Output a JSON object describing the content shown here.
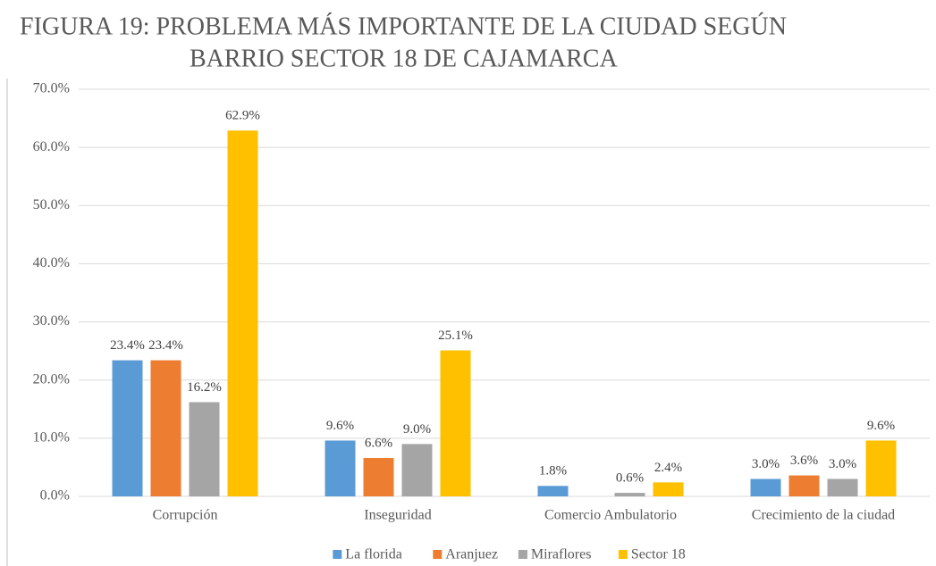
{
  "chart_data": {
    "type": "bar",
    "title": [
      "FIGURA 19: PROBLEMA MÁS IMPORTANTE DE LA CIUDAD SEGÚN",
      "BARRIO SECTOR 18 DE CAJAMARCA"
    ],
    "categories": [
      "Corrupción",
      "Inseguridad",
      "Comercio Ambulatorio",
      "Crecimiento de la ciudad"
    ],
    "series": [
      {
        "name": "La florida",
        "color": "#5b9bd5",
        "values": [
          23.4,
          9.6,
          1.8,
          3.0
        ],
        "value_labels": [
          "23.4%",
          "9.6%",
          "1.8%",
          "3.0%"
        ]
      },
      {
        "name": "Aranjuez",
        "color": "#ed7d31",
        "values": [
          23.4,
          6.6,
          null,
          3.6
        ],
        "value_labels": [
          "23.4%",
          "6.6%",
          null,
          "3.6%"
        ]
      },
      {
        "name": "Miraflores",
        "color": "#a5a5a5",
        "values": [
          16.2,
          9.0,
          0.6,
          3.0
        ],
        "value_labels": [
          "16.2%",
          "9.0%",
          "0.6%",
          "3.0%"
        ]
      },
      {
        "name": "Sector 18",
        "color": "#ffc000",
        "values": [
          62.9,
          25.1,
          2.4,
          9.6
        ],
        "value_labels": [
          "62.9%",
          "25.1%",
          "2.4%",
          "9.6%"
        ]
      }
    ],
    "ylim": [
      0,
      70
    ],
    "yticks": [
      {
        "value": 0,
        "label": "0.0%"
      },
      {
        "value": 10,
        "label": "10.0%"
      },
      {
        "value": 20,
        "label": "20.0%"
      },
      {
        "value": 30,
        "label": "30.0%"
      },
      {
        "value": 40,
        "label": "40.0%"
      },
      {
        "value": 50,
        "label": "50.0%"
      },
      {
        "value": 60,
        "label": "60.0%"
      },
      {
        "value": 70,
        "label": "70.0%"
      }
    ],
    "grid": true,
    "legend": "bottom"
  }
}
